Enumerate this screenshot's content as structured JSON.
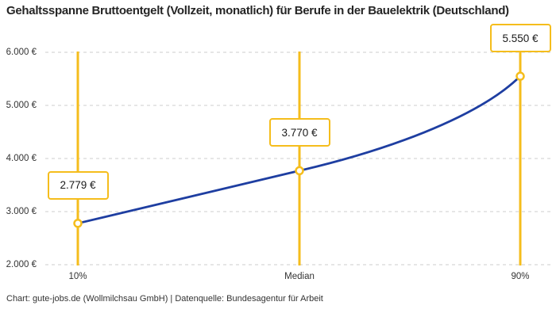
{
  "title": "Gehaltsspanne Bruttoentgelt (Vollzeit, monatlich) für Berufe in der Bauelektrik (Deutschland)",
  "footer": "Chart: gute-jobs.de (Wollmilchsau GmbH) | Datenquelle: Bundesagentur für Arbeit",
  "chart_data": {
    "type": "line",
    "title": "Gehaltsspanne Bruttoentgelt (Vollzeit, monatlich) für Berufe in der Bauelektrik (Deutschland)",
    "categories": [
      "10%",
      "Median",
      "90%"
    ],
    "values": [
      2779,
      3770,
      5550
    ],
    "value_labels": [
      "2.779 €",
      "3.770 €",
      "5.550 €"
    ],
    "y_ticks": [
      {
        "value": 2000,
        "label": "2.000 €"
      },
      {
        "value": 3000,
        "label": "3.000 €"
      },
      {
        "value": 4000,
        "label": "4.000 €"
      },
      {
        "value": 5000,
        "label": "5.000 €"
      },
      {
        "value": 6000,
        "label": "6.000 €"
      }
    ],
    "ylim": [
      2000,
      6000
    ],
    "xlabel": "",
    "ylabel": "",
    "grid": "horizontal-dashed",
    "legend": "none",
    "colors": {
      "line": "#1e3ea1",
      "marker_stroke": "#f5bd1c",
      "marker_fill": "#ffffff",
      "vertical_line": "#f5bd1c",
      "label_box_border": "#f5bd1c",
      "label_box_bg": "#ffffff",
      "grid": "#cccccc",
      "tick_text": "#333333",
      "title_text": "#252525"
    }
  }
}
